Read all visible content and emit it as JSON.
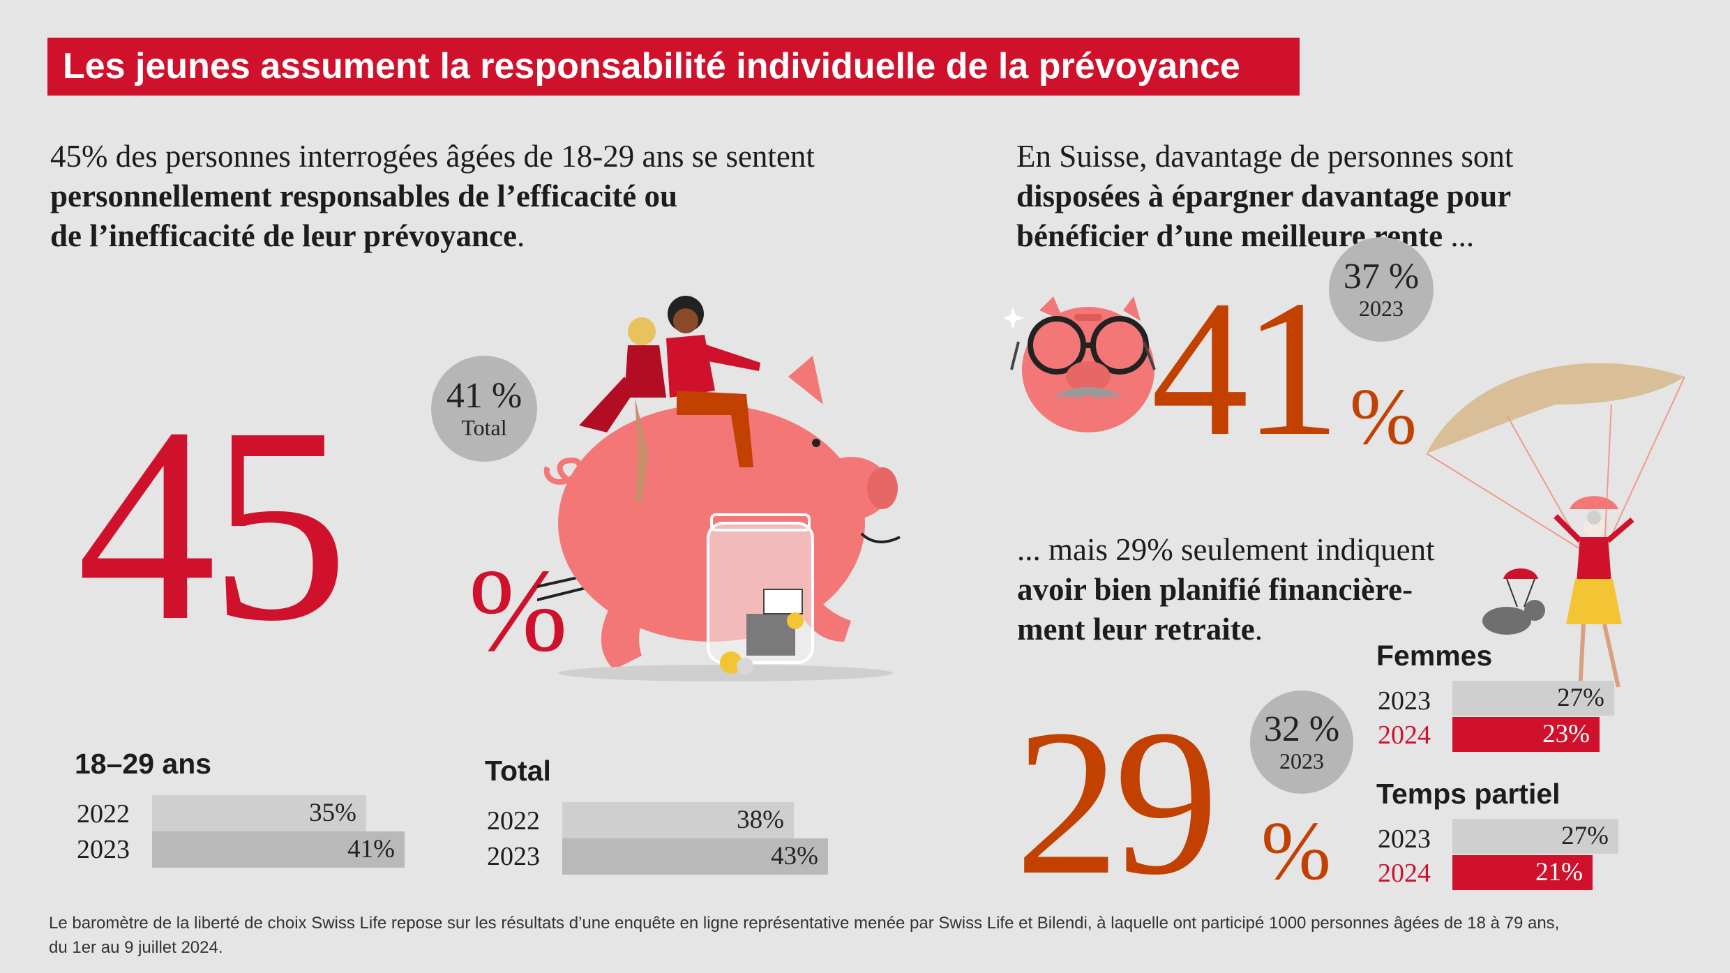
{
  "title": "Les jeunes assument la responsabilité individuelle de la prévoyance",
  "left": {
    "intro_plain": "45% des personnes interrogées âgées de 18-29 ans se sentent",
    "intro_bold_1": "personnellement responsables de l’efficacité ou",
    "intro_bold_2": "de l’inefficacité de leur prévoyance",
    "intro_end": ".",
    "big_value": "45",
    "big_unit": "%",
    "bubble_value": "41 %",
    "bubble_label": "Total"
  },
  "right_top": {
    "intro_plain": "En Suisse, davantage de personnes sont",
    "intro_bold_1": "disposées à épargner davantage pour",
    "intro_bold_2": "bénéficier d’une meilleure rente",
    "intro_end": " ...",
    "big_value": "41",
    "big_unit": "%",
    "bubble_value": "37 %",
    "bubble_label": "2023"
  },
  "right_bottom": {
    "intro_plain": "... mais 29% seulement indiquent",
    "intro_bold_1": "avoir bien planifié financière-",
    "intro_bold_2": "ment leur retraite",
    "intro_end": ".",
    "big_value": "29",
    "big_unit": "%",
    "bubble_value": "32 %",
    "bubble_label": "2023"
  },
  "chart_data": [
    {
      "type": "bar",
      "title": "18–29 ans",
      "categories": [
        "2022",
        "2023"
      ],
      "values": [
        35,
        41
      ],
      "labels": [
        "35%",
        "41%"
      ]
    },
    {
      "type": "bar",
      "title": "Total",
      "categories": [
        "2022",
        "2023"
      ],
      "values": [
        38,
        43
      ],
      "labels": [
        "38%",
        "43%"
      ]
    },
    {
      "type": "bar",
      "title": "Femmes",
      "categories": [
        "2023",
        "2024"
      ],
      "values": [
        27,
        23
      ],
      "labels": [
        "27%",
        "23%"
      ]
    },
    {
      "type": "bar",
      "title": "Temps partiel",
      "categories": [
        "2023",
        "2024"
      ],
      "values": [
        27,
        21
      ],
      "labels": [
        "27%",
        "21%"
      ]
    }
  ],
  "colors": {
    "red": "#d0112b",
    "orange": "#c24100",
    "pig": "#f37777",
    "bubble": "#b6b6b6",
    "bar_light": "#cfcfcf",
    "bar_mid": "#b9b9b9",
    "parachute": "#d9bf97"
  },
  "illustrations": {
    "left": "piggy-bank-with-riders-icon",
    "right_top": "piggy-bank-with-glasses-icon",
    "right_bottom": "parachute-grandma-icon"
  },
  "footnote_1": "Le baromètre de la liberté de choix Swiss Life repose sur les résultats d’une enquête en ligne représentative menée par Swiss Life et Bilendi, à laquelle ont participé 1000 personnes âgées de 18 à 79 ans,",
  "footnote_2": "du 1er au 9 juillet 2024."
}
